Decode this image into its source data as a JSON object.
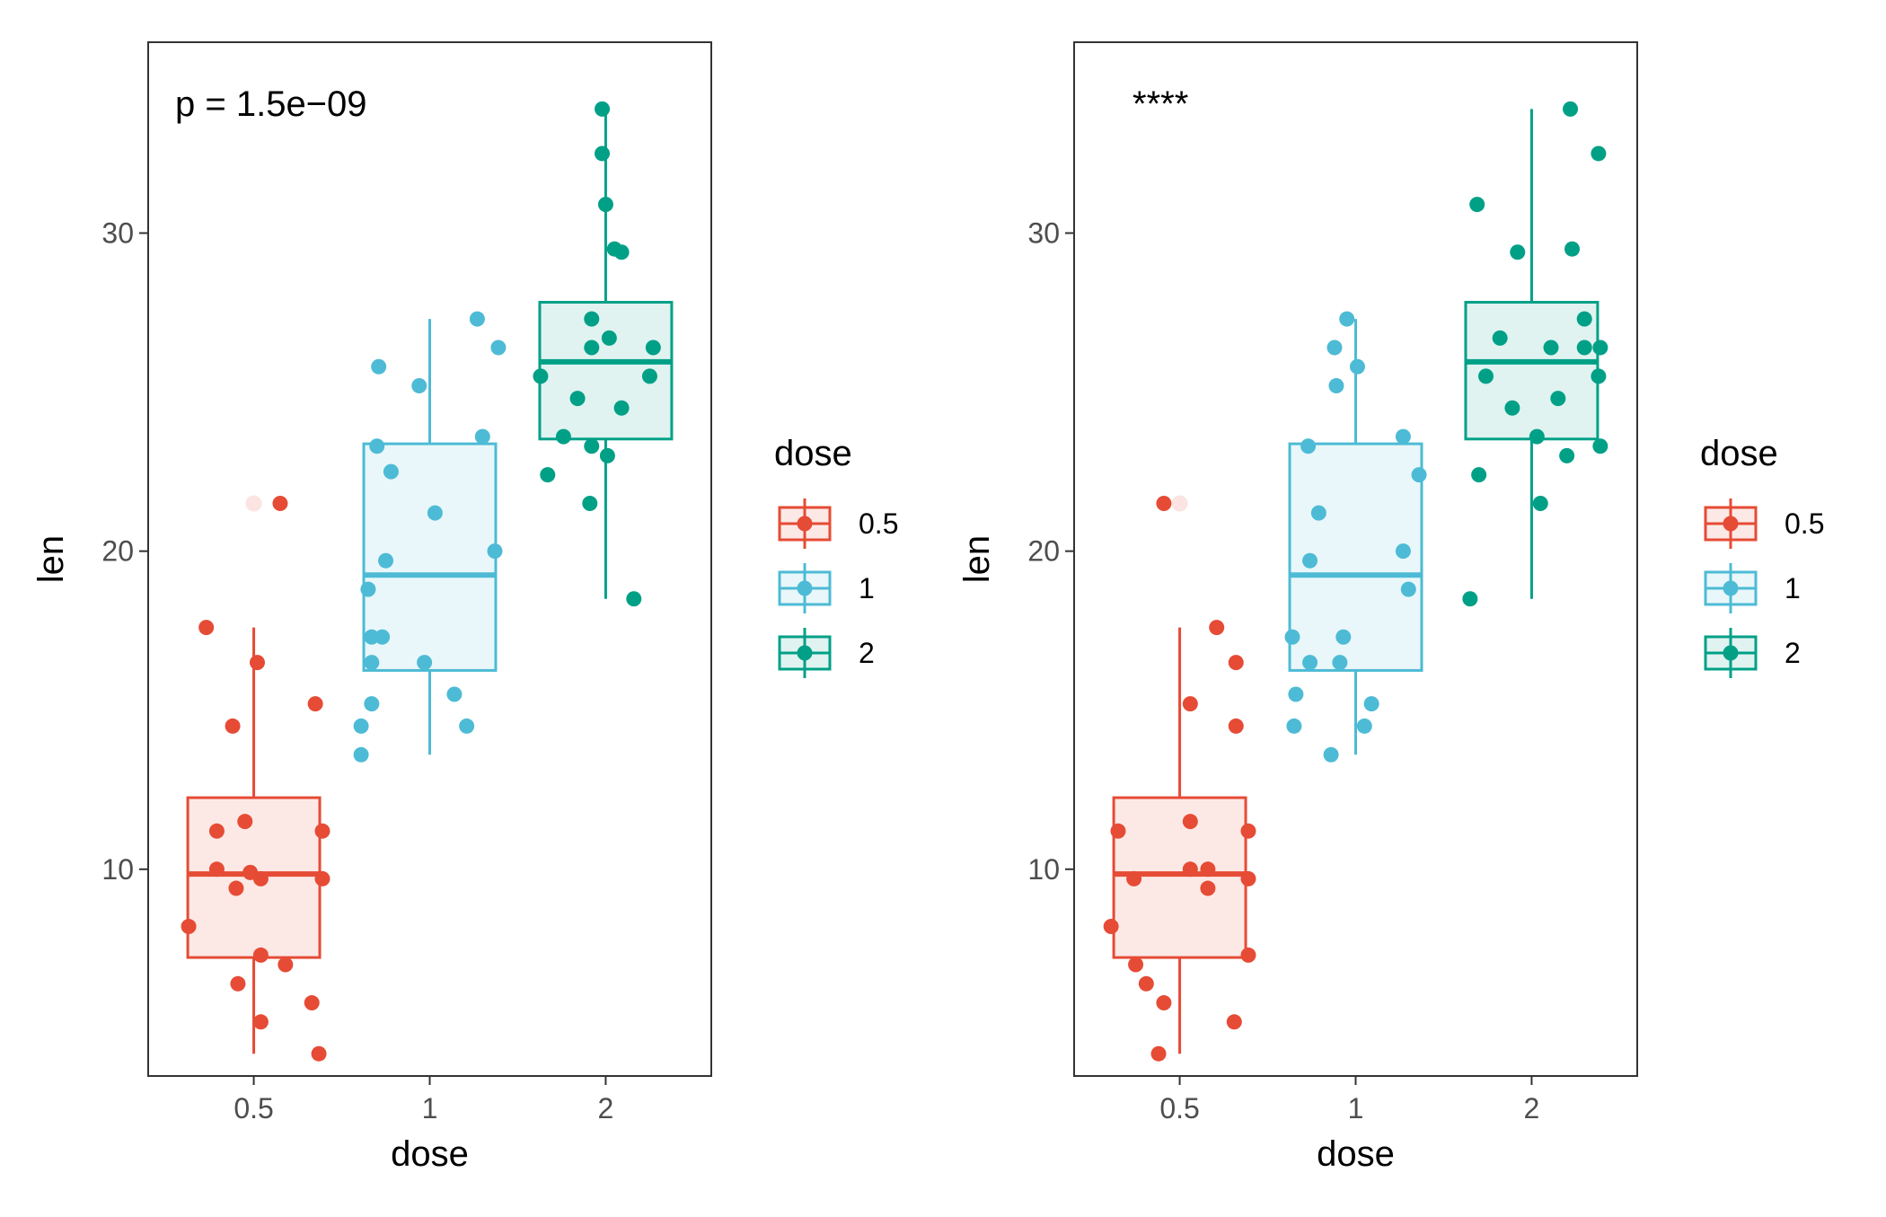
{
  "chart_data": [
    {
      "type": "boxplot",
      "annotation": "p = 1.5e−09",
      "xlabel": "dose",
      "ylabel": "len",
      "categories": [
        "0.5",
        "1",
        "2"
      ],
      "ylim": [
        3.5,
        36
      ],
      "yticks": [
        10,
        20,
        30
      ],
      "legend": {
        "title": "dose",
        "position": "right",
        "entries": [
          "0.5",
          "1",
          "2"
        ]
      },
      "colors": {
        "0.5": "#E64B35",
        "1": "#4DBBD5",
        "2": "#00A087"
      },
      "boxes": [
        {
          "category": "0.5",
          "min": 4.2,
          "q1": 7.225,
          "median": 9.85,
          "q3": 12.25,
          "max": 17.6
        },
        {
          "category": "1",
          "min": 13.6,
          "q1": 16.25,
          "median": 19.25,
          "q3": 23.375,
          "max": 27.3
        },
        {
          "category": "2",
          "min": 18.5,
          "q1": 23.525,
          "median": 25.95,
          "q3": 27.825,
          "max": 33.9
        }
      ],
      "outliers": [
        {
          "category": "0.5",
          "value": 21.5
        }
      ],
      "points": [
        {
          "category": "0.5",
          "jitter": -0.37,
          "value": 8.2
        },
        {
          "category": "0.5",
          "jitter": -0.27,
          "value": 17.6
        },
        {
          "category": "0.5",
          "jitter": -0.21,
          "value": 11.2
        },
        {
          "category": "0.5",
          "jitter": -0.21,
          "value": 10.0
        },
        {
          "category": "0.5",
          "jitter": -0.12,
          "value": 14.5
        },
        {
          "category": "0.5",
          "jitter": -0.1,
          "value": 9.4
        },
        {
          "category": "0.5",
          "jitter": -0.09,
          "value": 6.4
        },
        {
          "category": "0.5",
          "jitter": -0.05,
          "value": 11.5
        },
        {
          "category": "0.5",
          "jitter": -0.02,
          "value": 9.9
        },
        {
          "category": "0.5",
          "jitter": 0.02,
          "value": 16.5
        },
        {
          "category": "0.5",
          "jitter": 0.04,
          "value": 9.7
        },
        {
          "category": "0.5",
          "jitter": 0.04,
          "value": 7.3
        },
        {
          "category": "0.5",
          "jitter": 0.04,
          "value": 5.2
        },
        {
          "category": "0.5",
          "jitter": 0.15,
          "value": 21.5
        },
        {
          "category": "0.5",
          "jitter": 0.18,
          "value": 7.0
        },
        {
          "category": "0.5",
          "jitter": 0.33,
          "value": 5.8
        },
        {
          "category": "0.5",
          "jitter": 0.35,
          "value": 15.2
        },
        {
          "category": "0.5",
          "jitter": 0.37,
          "value": 4.2
        },
        {
          "category": "0.5",
          "jitter": 0.39,
          "value": 11.2
        },
        {
          "category": "0.5",
          "jitter": 0.39,
          "value": 9.7
        },
        {
          "category": "1",
          "jitter": -0.39,
          "value": 14.5
        },
        {
          "category": "1",
          "jitter": -0.39,
          "value": 13.6
        },
        {
          "category": "1",
          "jitter": -0.35,
          "value": 18.8
        },
        {
          "category": "1",
          "jitter": -0.33,
          "value": 17.3
        },
        {
          "category": "1",
          "jitter": -0.33,
          "value": 16.5
        },
        {
          "category": "1",
          "jitter": -0.33,
          "value": 15.2
        },
        {
          "category": "1",
          "jitter": -0.3,
          "value": 23.3
        },
        {
          "category": "1",
          "jitter": -0.29,
          "value": 25.8
        },
        {
          "category": "1",
          "jitter": -0.27,
          "value": 17.3
        },
        {
          "category": "1",
          "jitter": -0.25,
          "value": 19.7
        },
        {
          "category": "1",
          "jitter": -0.22,
          "value": 22.5
        },
        {
          "category": "1",
          "jitter": -0.06,
          "value": 25.2
        },
        {
          "category": "1",
          "jitter": -0.03,
          "value": 16.5
        },
        {
          "category": "1",
          "jitter": 0.03,
          "value": 21.2
        },
        {
          "category": "1",
          "jitter": 0.14,
          "value": 15.5
        },
        {
          "category": "1",
          "jitter": 0.21,
          "value": 14.5
        },
        {
          "category": "1",
          "jitter": 0.27,
          "value": 27.3
        },
        {
          "category": "1",
          "jitter": 0.3,
          "value": 23.6
        },
        {
          "category": "1",
          "jitter": 0.37,
          "value": 20.0
        },
        {
          "category": "1",
          "jitter": 0.39,
          "value": 26.4
        },
        {
          "category": "2",
          "jitter": -0.37,
          "value": 25.5
        },
        {
          "category": "2",
          "jitter": -0.33,
          "value": 22.4
        },
        {
          "category": "2",
          "jitter": -0.24,
          "value": 23.6
        },
        {
          "category": "2",
          "jitter": -0.16,
          "value": 24.8
        },
        {
          "category": "2",
          "jitter": -0.08,
          "value": 27.3
        },
        {
          "category": "2",
          "jitter": -0.08,
          "value": 26.4
        },
        {
          "category": "2",
          "jitter": -0.08,
          "value": 23.3
        },
        {
          "category": "2",
          "jitter": -0.09,
          "value": 21.5
        },
        {
          "category": "2",
          "jitter": -0.02,
          "value": 32.5
        },
        {
          "category": "2",
          "jitter": -0.02,
          "value": 33.9
        },
        {
          "category": "2",
          "jitter": 0.0,
          "value": 30.9
        },
        {
          "category": "2",
          "jitter": 0.02,
          "value": 26.7
        },
        {
          "category": "2",
          "jitter": 0.01,
          "value": 23.0
        },
        {
          "category": "2",
          "jitter": 0.05,
          "value": 29.5
        },
        {
          "category": "2",
          "jitter": 0.09,
          "value": 29.4
        },
        {
          "category": "2",
          "jitter": 0.09,
          "value": 24.5
        },
        {
          "category": "2",
          "jitter": 0.16,
          "value": 18.5
        },
        {
          "category": "2",
          "jitter": 0.25,
          "value": 25.5
        },
        {
          "category": "2",
          "jitter": 0.27,
          "value": 26.4
        }
      ]
    },
    {
      "type": "boxplot",
      "annotation": "****",
      "xlabel": "dose",
      "ylabel": "len",
      "categories": [
        "0.5",
        "1",
        "2"
      ],
      "ylim": [
        3.5,
        36
      ],
      "yticks": [
        10,
        20,
        30
      ],
      "legend": {
        "title": "dose",
        "position": "right",
        "entries": [
          "0.5",
          "1",
          "2"
        ]
      },
      "colors": {
        "0.5": "#E64B35",
        "1": "#4DBBD5",
        "2": "#00A087"
      },
      "boxes": [
        {
          "category": "0.5",
          "min": 4.2,
          "q1": 7.225,
          "median": 9.85,
          "q3": 12.25,
          "max": 17.6
        },
        {
          "category": "1",
          "min": 13.6,
          "q1": 16.25,
          "median": 19.25,
          "q3": 23.375,
          "max": 27.3
        },
        {
          "category": "2",
          "min": 18.5,
          "q1": 23.525,
          "median": 25.95,
          "q3": 27.825,
          "max": 33.9
        }
      ],
      "outliers": [
        {
          "category": "0.5",
          "value": 21.5
        }
      ],
      "points": [
        {
          "category": "0.5",
          "jitter": -0.39,
          "value": 8.2
        },
        {
          "category": "0.5",
          "jitter": -0.35,
          "value": 11.2
        },
        {
          "category": "0.5",
          "jitter": -0.26,
          "value": 9.7
        },
        {
          "category": "0.5",
          "jitter": -0.25,
          "value": 7.0
        },
        {
          "category": "0.5",
          "jitter": -0.19,
          "value": 6.4
        },
        {
          "category": "0.5",
          "jitter": -0.12,
          "value": 4.2
        },
        {
          "category": "0.5",
          "jitter": -0.09,
          "value": 5.8
        },
        {
          "category": "0.5",
          "jitter": -0.09,
          "value": 21.5
        },
        {
          "category": "0.5",
          "jitter": 0.06,
          "value": 15.2
        },
        {
          "category": "0.5",
          "jitter": 0.06,
          "value": 11.5
        },
        {
          "category": "0.5",
          "jitter": 0.06,
          "value": 10.0
        },
        {
          "category": "0.5",
          "jitter": 0.16,
          "value": 9.4
        },
        {
          "category": "0.5",
          "jitter": 0.16,
          "value": 10.0
        },
        {
          "category": "0.5",
          "jitter": 0.21,
          "value": 17.6
        },
        {
          "category": "0.5",
          "jitter": 0.31,
          "value": 5.2
        },
        {
          "category": "0.5",
          "jitter": 0.32,
          "value": 16.5
        },
        {
          "category": "0.5",
          "jitter": 0.32,
          "value": 14.5
        },
        {
          "category": "0.5",
          "jitter": 0.39,
          "value": 11.2
        },
        {
          "category": "0.5",
          "jitter": 0.39,
          "value": 9.7
        },
        {
          "category": "0.5",
          "jitter": 0.39,
          "value": 7.3
        },
        {
          "category": "1",
          "jitter": -0.36,
          "value": 17.3
        },
        {
          "category": "1",
          "jitter": -0.35,
          "value": 14.5
        },
        {
          "category": "1",
          "jitter": -0.34,
          "value": 15.5
        },
        {
          "category": "1",
          "jitter": -0.27,
          "value": 23.3
        },
        {
          "category": "1",
          "jitter": -0.26,
          "value": 16.5
        },
        {
          "category": "1",
          "jitter": -0.26,
          "value": 19.7
        },
        {
          "category": "1",
          "jitter": -0.21,
          "value": 21.2
        },
        {
          "category": "1",
          "jitter": -0.14,
          "value": 13.6
        },
        {
          "category": "1",
          "jitter": -0.12,
          "value": 26.4
        },
        {
          "category": "1",
          "jitter": -0.11,
          "value": 25.2
        },
        {
          "category": "1",
          "jitter": -0.09,
          "value": 16.5
        },
        {
          "category": "1",
          "jitter": -0.07,
          "value": 17.3
        },
        {
          "category": "1",
          "jitter": -0.05,
          "value": 27.3
        },
        {
          "category": "1",
          "jitter": 0.01,
          "value": 25.8
        },
        {
          "category": "1",
          "jitter": 0.05,
          "value": 14.5
        },
        {
          "category": "1",
          "jitter": 0.09,
          "value": 15.2
        },
        {
          "category": "1",
          "jitter": 0.27,
          "value": 23.6
        },
        {
          "category": "1",
          "jitter": 0.27,
          "value": 20.0
        },
        {
          "category": "1",
          "jitter": 0.3,
          "value": 18.8
        },
        {
          "category": "1",
          "jitter": 0.36,
          "value": 22.4
        },
        {
          "category": "2",
          "jitter": -0.35,
          "value": 18.5
        },
        {
          "category": "2",
          "jitter": -0.31,
          "value": 30.9
        },
        {
          "category": "2",
          "jitter": -0.3,
          "value": 22.4
        },
        {
          "category": "2",
          "jitter": -0.26,
          "value": 25.5
        },
        {
          "category": "2",
          "jitter": -0.18,
          "value": 26.7
        },
        {
          "category": "2",
          "jitter": -0.11,
          "value": 24.5
        },
        {
          "category": "2",
          "jitter": -0.08,
          "value": 29.4
        },
        {
          "category": "2",
          "jitter": 0.03,
          "value": 23.6
        },
        {
          "category": "2",
          "jitter": 0.05,
          "value": 21.5
        },
        {
          "category": "2",
          "jitter": 0.11,
          "value": 26.4
        },
        {
          "category": "2",
          "jitter": 0.15,
          "value": 24.8
        },
        {
          "category": "2",
          "jitter": 0.2,
          "value": 23.0
        },
        {
          "category": "2",
          "jitter": 0.22,
          "value": 33.9
        },
        {
          "category": "2",
          "jitter": 0.23,
          "value": 29.5
        },
        {
          "category": "2",
          "jitter": 0.3,
          "value": 27.3
        },
        {
          "category": "2",
          "jitter": 0.3,
          "value": 26.4
        },
        {
          "category": "2",
          "jitter": 0.38,
          "value": 32.5
        },
        {
          "category": "2",
          "jitter": 0.39,
          "value": 26.4
        },
        {
          "category": "2",
          "jitter": 0.38,
          "value": 25.5
        },
        {
          "category": "2",
          "jitter": 0.39,
          "value": 23.3
        }
      ]
    }
  ]
}
